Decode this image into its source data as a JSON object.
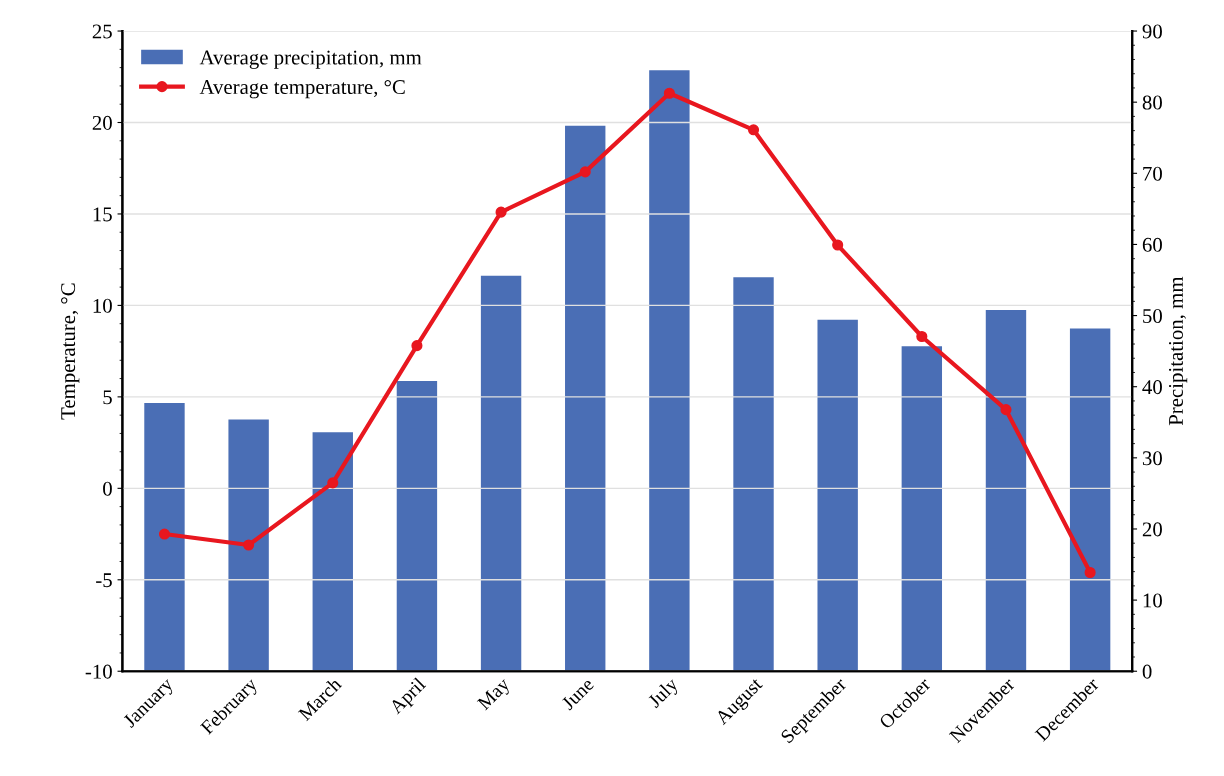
{
  "chart_data": {
    "type": "bar",
    "categories": [
      "January",
      "February",
      "March",
      "April",
      "May",
      "June",
      "July",
      "August",
      "September",
      "October",
      "November",
      "December"
    ],
    "series": [
      {
        "name": "Average precipitation, mm",
        "axis": "y2",
        "color": "#4a6eb5",
        "values": [
          37.7,
          35.4,
          33.6,
          40.8,
          55.6,
          76.7,
          84.5,
          55.4,
          49.4,
          45.7,
          50.8,
          48.2
        ]
      },
      {
        "name": "Average temperature, °C",
        "type": "line",
        "axis": "y",
        "color": "#e8171f",
        "marker": "circle",
        "values": [
          -2.5,
          -3.1,
          0.3,
          7.8,
          15.1,
          17.3,
          21.6,
          19.6,
          13.3,
          8.3,
          4.3,
          -4.6
        ]
      }
    ],
    "ylabel": "Temperature, °C",
    "y2label": "Precipitation, mm",
    "ylim": [
      -10,
      25
    ],
    "yticks": [
      -10,
      -5,
      0,
      5,
      10,
      15,
      20,
      25
    ],
    "y2lim": [
      0,
      90
    ],
    "y2ticks": [
      0,
      10,
      20,
      30,
      40,
      50,
      60,
      70,
      80,
      90
    ],
    "grid": "y",
    "legend": "top left"
  }
}
